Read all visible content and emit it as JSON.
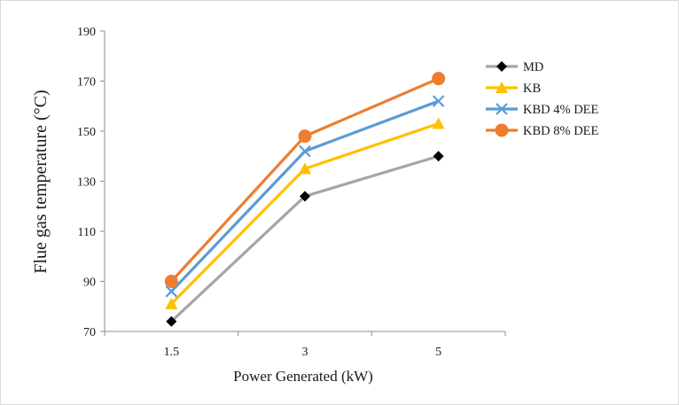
{
  "chart_data": {
    "type": "line",
    "title": "",
    "xlabel": "Power Generated (kW)",
    "ylabel": "Flue gas temperature (°C)",
    "categories": [
      "1.5",
      "3",
      "5"
    ],
    "ylim": [
      70,
      190
    ],
    "yticks": [
      "70",
      "90",
      "110",
      "130",
      "150",
      "170",
      "190"
    ],
    "grid": false,
    "legend_position": "right",
    "series": [
      {
        "name": "MD",
        "values": [
          74,
          124,
          140
        ],
        "color": "#a5a5a5",
        "marker_color": "#000000",
        "marker": "diamond"
      },
      {
        "name": "KB",
        "values": [
          81,
          135,
          153
        ],
        "color": "#ffc000",
        "marker_color": "#ffc000",
        "marker": "triangle"
      },
      {
        "name": "KBD 4% DEE",
        "values": [
          86,
          142,
          162
        ],
        "color": "#5b9bd5",
        "marker_color": "#5b9bd5",
        "marker": "x"
      },
      {
        "name": "KBD 8% DEE",
        "values": [
          90,
          148,
          171
        ],
        "color": "#ed7d31",
        "marker_color": "#ed7d31",
        "marker": "circle"
      }
    ]
  }
}
